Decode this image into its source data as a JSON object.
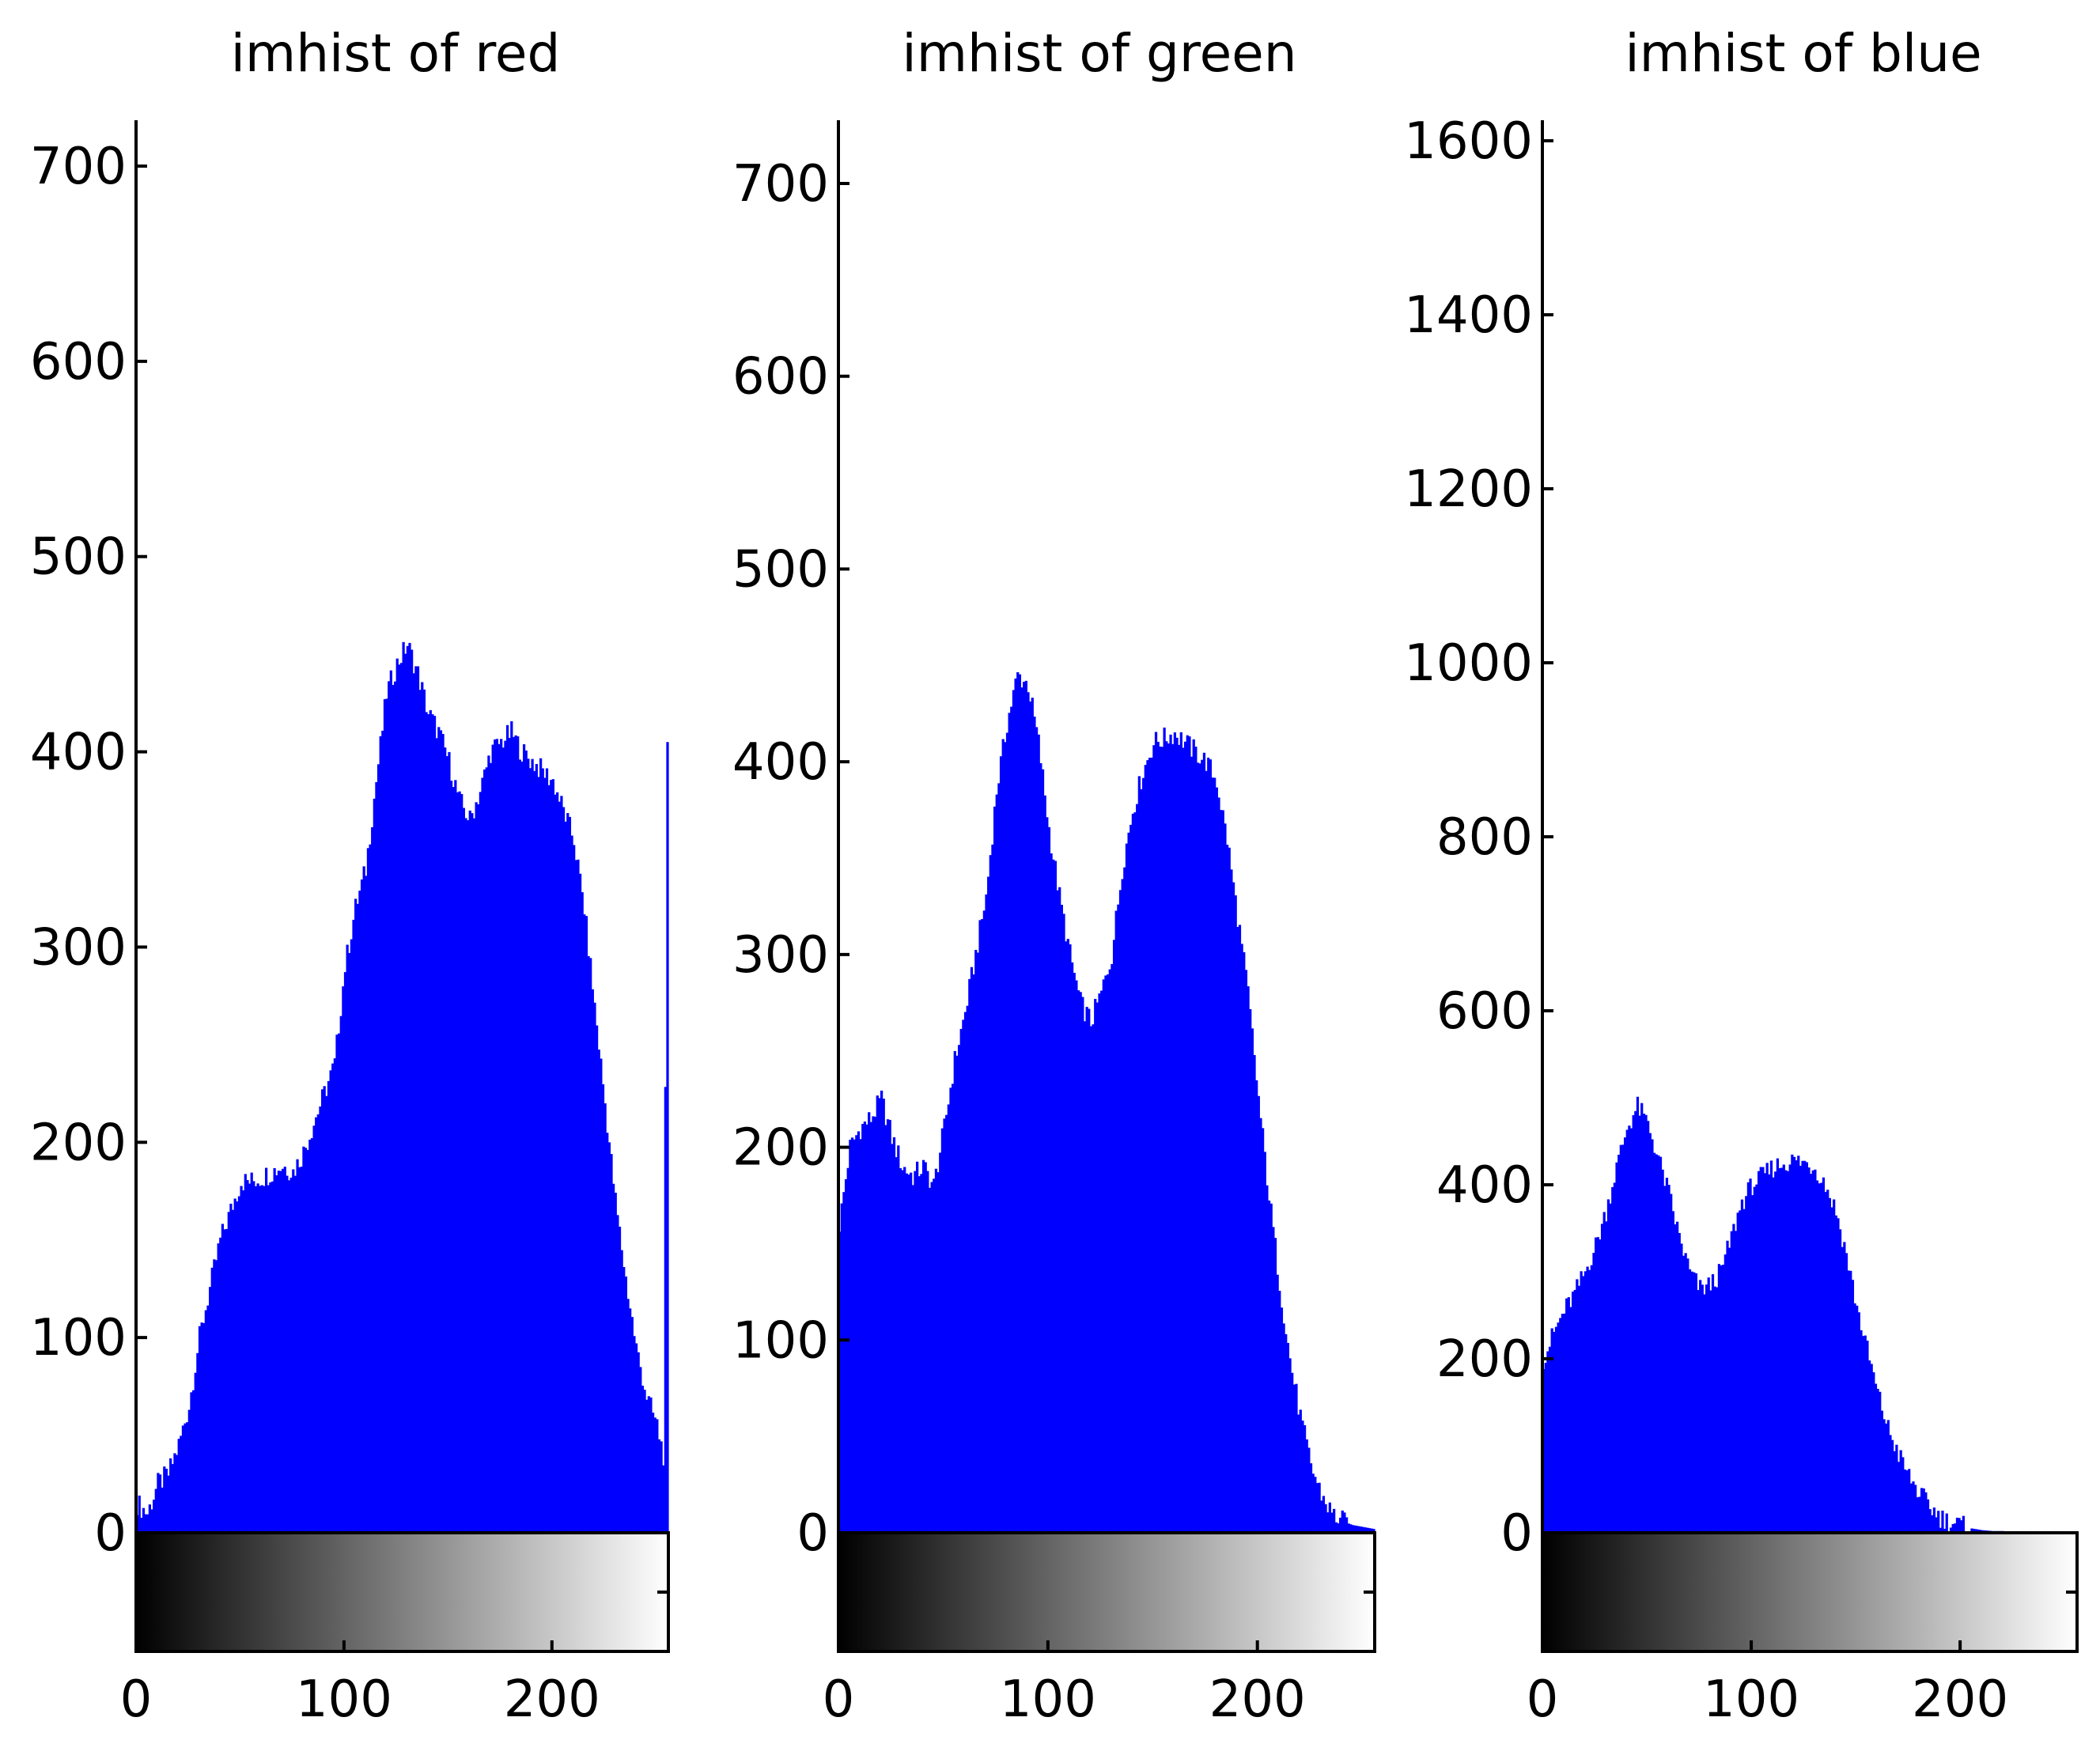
{
  "chart_data": [
    {
      "type": "bar",
      "title": "imhist of red",
      "color": "#0000ff",
      "xlim": [
        0,
        255
      ],
      "ylim": [
        0,
        730
      ],
      "x_ticks": [
        "0",
        "100",
        "200"
      ],
      "y_ticks": [
        "0",
        "100",
        "200",
        "300",
        "400",
        "500",
        "600",
        "700"
      ],
      "colorbar": "grayscale",
      "bin_values": [
        [
          0,
          15
        ],
        [
          5,
          10
        ],
        [
          10,
          25
        ],
        [
          15,
          30
        ],
        [
          20,
          45
        ],
        [
          25,
          65
        ],
        [
          30,
          100
        ],
        [
          35,
          125
        ],
        [
          40,
          150
        ],
        [
          45,
          165
        ],
        [
          50,
          180
        ],
        [
          55,
          180
        ],
        [
          60,
          182
        ],
        [
          65,
          185
        ],
        [
          70,
          188
        ],
        [
          75,
          185
        ],
        [
          80,
          195
        ],
        [
          85,
          210
        ],
        [
          90,
          225
        ],
        [
          95,
          240
        ],
        [
          100,
          290
        ],
        [
          105,
          320
        ],
        [
          110,
          340
        ],
        [
          115,
          385
        ],
        [
          120,
          430
        ],
        [
          125,
          445
        ],
        [
          130,
          455
        ],
        [
          135,
          440
        ],
        [
          140,
          420
        ],
        [
          145,
          410
        ],
        [
          150,
          395
        ],
        [
          155,
          375
        ],
        [
          160,
          365
        ],
        [
          165,
          380
        ],
        [
          170,
          400
        ],
        [
          175,
          405
        ],
        [
          180,
          410
        ],
        [
          185,
          400
        ],
        [
          190,
          395
        ],
        [
          195,
          390
        ],
        [
          200,
          385
        ],
        [
          205,
          370
        ],
        [
          210,
          355
        ],
        [
          215,
          320
        ],
        [
          220,
          270
        ],
        [
          225,
          220
        ],
        [
          230,
          170
        ],
        [
          235,
          130
        ],
        [
          240,
          95
        ],
        [
          245,
          70
        ],
        [
          250,
          55
        ],
        [
          253,
          40
        ],
        [
          255,
          405
        ]
      ]
    },
    {
      "type": "bar",
      "title": "imhist of green",
      "color": "#0000ff",
      "xlim": [
        0,
        255
      ],
      "ylim": [
        0,
        730
      ],
      "x_ticks": [
        "0",
        "100",
        "200"
      ],
      "y_ticks": [
        "0",
        "100",
        "200",
        "300",
        "400",
        "500",
        "600",
        "700"
      ],
      "colorbar": "grayscale",
      "bin_values": [
        [
          0,
          160
        ],
        [
          5,
          200
        ],
        [
          10,
          210
        ],
        [
          15,
          215
        ],
        [
          20,
          225
        ],
        [
          25,
          205
        ],
        [
          30,
          190
        ],
        [
          35,
          185
        ],
        [
          40,
          190
        ],
        [
          45,
          180
        ],
        [
          50,
          210
        ],
        [
          55,
          245
        ],
        [
          60,
          270
        ],
        [
          65,
          300
        ],
        [
          70,
          330
        ],
        [
          75,
          385
        ],
        [
          80,
          420
        ],
        [
          85,
          445
        ],
        [
          90,
          440
        ],
        [
          95,
          410
        ],
        [
          100,
          365
        ],
        [
          105,
          330
        ],
        [
          110,
          300
        ],
        [
          115,
          275
        ],
        [
          120,
          265
        ],
        [
          125,
          280
        ],
        [
          130,
          300
        ],
        [
          135,
          345
        ],
        [
          140,
          375
        ],
        [
          145,
          395
        ],
        [
          150,
          410
        ],
        [
          155,
          412
        ],
        [
          160,
          415
        ],
        [
          165,
          410
        ],
        [
          170,
          405
        ],
        [
          175,
          400
        ],
        [
          180,
          390
        ],
        [
          185,
          360
        ],
        [
          190,
          320
        ],
        [
          195,
          280
        ],
        [
          200,
          225
        ],
        [
          205,
          175
        ],
        [
          210,
          130
        ],
        [
          215,
          90
        ],
        [
          220,
          60
        ],
        [
          225,
          35
        ],
        [
          230,
          20
        ],
        [
          235,
          10
        ],
        [
          240,
          6
        ],
        [
          245,
          4
        ],
        [
          250,
          3
        ],
        [
          255,
          2
        ]
      ]
    },
    {
      "type": "bar",
      "title": "imhist of blue",
      "color": "#0000ff",
      "xlim": [
        0,
        255
      ],
      "ylim": [
        0,
        1610
      ],
      "x_ticks": [
        "0",
        "100",
        "200"
      ],
      "y_ticks": [
        "0",
        "200",
        "400",
        "600",
        "800",
        "1000",
        "1200",
        "1400",
        "1600"
      ],
      "colorbar": "grayscale",
      "bin_values": [
        [
          0,
          200
        ],
        [
          5,
          230
        ],
        [
          10,
          255
        ],
        [
          15,
          275
        ],
        [
          20,
          300
        ],
        [
          25,
          330
        ],
        [
          30,
          370
        ],
        [
          35,
          420
        ],
        [
          40,
          465
        ],
        [
          45,
          490
        ],
        [
          50,
          470
        ],
        [
          55,
          430
        ],
        [
          60,
          390
        ],
        [
          65,
          340
        ],
        [
          70,
          300
        ],
        [
          75,
          280
        ],
        [
          80,
          285
        ],
        [
          85,
          300
        ],
        [
          90,
          340
        ],
        [
          95,
          380
        ],
        [
          100,
          400
        ],
        [
          105,
          410
        ],
        [
          110,
          420
        ],
        [
          115,
          425
        ],
        [
          120,
          428
        ],
        [
          125,
          425
        ],
        [
          130,
          420
        ],
        [
          135,
          400
        ],
        [
          140,
          370
        ],
        [
          145,
          320
        ],
        [
          150,
          260
        ],
        [
          155,
          210
        ],
        [
          160,
          160
        ],
        [
          165,
          120
        ],
        [
          170,
          90
        ],
        [
          175,
          65
        ],
        [
          180,
          45
        ],
        [
          185,
          30
        ],
        [
          190,
          18
        ],
        [
          195,
          12
        ],
        [
          200,
          8
        ],
        [
          205,
          5
        ],
        [
          210,
          3
        ],
        [
          215,
          2
        ],
        [
          220,
          2
        ],
        [
          225,
          1
        ],
        [
          230,
          1
        ],
        [
          235,
          1
        ],
        [
          240,
          0
        ],
        [
          245,
          0
        ],
        [
          250,
          0
        ],
        [
          255,
          0
        ]
      ]
    }
  ]
}
